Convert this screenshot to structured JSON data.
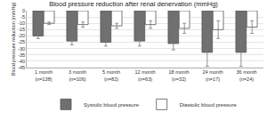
{
  "chart_data": {
    "type": "bar",
    "title": "Blood pressure reduction after renal denervation (mmHg)",
    "y_label": "Blood pressure reduction (mmHg)",
    "categories": [
      "1 month (n=138)",
      "3 month (n=106)",
      "5 month (n=82)",
      "12 month (n=63)",
      "18 month (n=32)",
      "24 month (n=17)",
      "36 month (n=24)"
    ],
    "series": [
      {
        "name": "Systolic blood pressure",
        "color": "#707070",
        "values": [
          -20,
          -24,
          -25,
          -24,
          -26,
          -33,
          -33
        ],
        "errors": [
          2,
          3,
          3,
          4,
          5,
          11,
          11
        ]
      },
      {
        "name": "Diastolic blood pressure",
        "color": "#ffffff",
        "values": [
          -10,
          -11,
          -12,
          -11,
          -14,
          -15,
          -13
        ],
        "errors": [
          1,
          2,
          2,
          3,
          4,
          7,
          5
        ]
      }
    ],
    "ylim": [
      -45,
      0
    ],
    "yticks": [
      -45,
      -40,
      -35,
      -30,
      -25,
      -20,
      -15,
      -10,
      -5,
      0
    ],
    "grid": true,
    "legend": "bottom"
  }
}
